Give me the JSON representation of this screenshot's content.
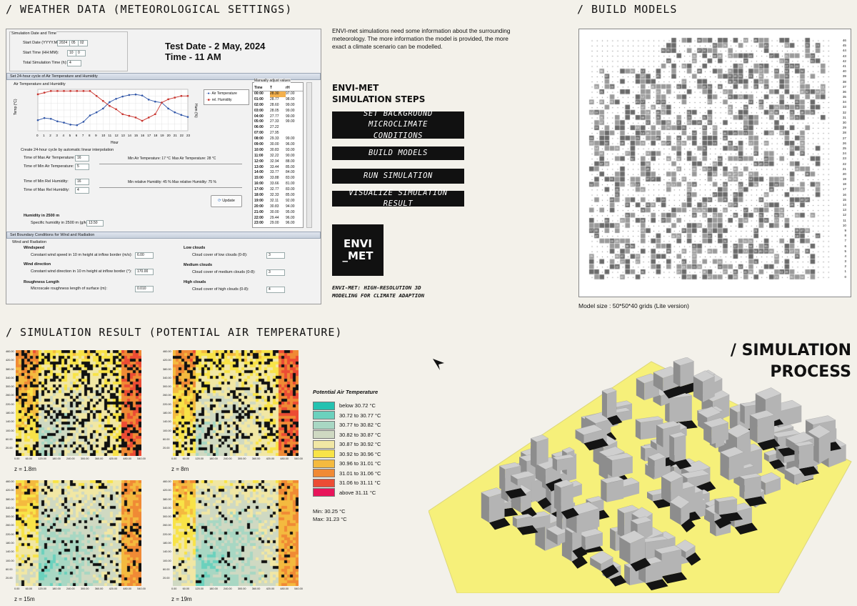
{
  "sections": {
    "weather_title": "/ WEATHER DATA (METEOROLOGICAL SETTINGS)",
    "build_title": "/ BUILD MODELS",
    "result_title": "/ SIMULATION RESULT (POTENTIAL AIR TEMPERATURE)",
    "process_title_1": "/ SIMULATION",
    "process_title_2": "PROCESS"
  },
  "settings": {
    "start_group": "Simulation Date and Time",
    "start_date_label": "Start Date (YYYY.MM.DD):",
    "start_date": [
      "2024",
      "05",
      "02"
    ],
    "start_time_label": "Start Time (HH:MM):",
    "start_time": [
      "10",
      "0"
    ],
    "total_time_label": "Total Simulation Time (h):",
    "total_time": "4",
    "test_date": "Test Date - 2 May, 2024",
    "test_time": "Time - 11 AM",
    "section_air": "Set 24-hour cycle of Air Temperature and Humidity",
    "air_group": "Air Temperature and Humidity",
    "legend_air": "Air Temperature",
    "legend_hum": "rel. Humidity",
    "ylabel_left": "Temp (°C)",
    "ylabel_right": "Hum (%)",
    "xlabel": "Hour",
    "create_cycle": "Create 24-hour cycle by automatic linear interpolation",
    "max_air_label": "Time of Max Air Temperature:",
    "max_air": "16",
    "min_air_label": "Time of Min Air Temperature:",
    "min_air": "5",
    "min_air_temp_text": "Min Air Temperature: 17 °C",
    "max_air_temp_text": "Max Air Temperature: 28 °C",
    "min_hum_label": "Time of Min Rel Humidity:",
    "min_hum": "16",
    "max_hum_label": "Time of Max Rel Humidity:",
    "max_hum": "4",
    "min_rel_hum_text": "Min relative Humidity: 45 %",
    "max_rel_hum_text": "Max relative Humidity: 75 %",
    "update": "Update",
    "humidity_2500_title": "Humidity in 2500 m",
    "spec_hum_label": "Specific humidity in 2500 m (g/kg):",
    "spec_hum": "13.50",
    "manual_title": "Manually adjust values",
    "col_time": "Time",
    "col_t": "T",
    "col_rh": "rH",
    "rows": [
      [
        "00:00",
        "28.30",
        "97.00"
      ],
      [
        "01:00",
        "28.77",
        "98.00"
      ],
      [
        "02:00",
        "28.60",
        "99.00"
      ],
      [
        "03:00",
        "28.05",
        "99.00"
      ],
      [
        "04:00",
        "27.77",
        "99.00"
      ],
      [
        "05:00",
        "27.33",
        "99.00"
      ],
      [
        "06:00",
        "27.22",
        ""
      ],
      [
        "07:00",
        "27.95",
        ""
      ],
      [
        "08:00",
        "29.33",
        "99.00"
      ],
      [
        "09:00",
        "30.00",
        "96.00"
      ],
      [
        "10:00",
        "30.83",
        "93.00"
      ],
      [
        "11:00",
        "32.22",
        "90.00"
      ],
      [
        "12:00",
        "32.94",
        "88.00"
      ],
      [
        "13:00",
        "33.44",
        "85.00"
      ],
      [
        "14:00",
        "33.77",
        "84.00"
      ],
      [
        "15:00",
        "33.88",
        "83.00"
      ],
      [
        "16:00",
        "33.66",
        "81.00"
      ],
      [
        "17:00",
        "32.77",
        "83.00"
      ],
      [
        "18:00",
        "32.33",
        "85.00"
      ],
      [
        "19:00",
        "32.11",
        "92.00"
      ],
      [
        "20:00",
        "30.83",
        "94.00"
      ],
      [
        "21:00",
        "30.00",
        "95.00"
      ],
      [
        "22:00",
        "29.44",
        "96.00"
      ],
      [
        "23:00",
        "29.00",
        "96.00"
      ]
    ],
    "section_wind": "Set Boundary Conditions for Wind and Radiation",
    "wind_group": "Wind and Radiation",
    "windspeed_title": "Windspeed",
    "windspeed_label": "Constant wind speed in 10 m height at inflow border (m/s):",
    "windspeed": "6.00",
    "winddir_title": "Wind direction",
    "winddir_label": "Constant wind direction in 10 m height at inflow border (°):",
    "winddir": "170.00",
    "rough_title": "Roughness Length",
    "rough_label": "Microscale roughness length of surface (m):",
    "rough": "0.010",
    "low_title": "Low clouds",
    "low_label": "Cloud cover of low clouds (0-8):",
    "low": "3",
    "med_title": "Medium clouds",
    "med_label": "Cloud cover of medium clouds (0-8):",
    "med": "3",
    "high_title": "High clouds",
    "high_label": "Cloud cover of high clouds (0-8):",
    "high": "4"
  },
  "intro": "ENVI-met simulations need some information about the surrounding meteorology. The more information the model is provided, the more exact a climate scenario can be modelled.",
  "steps_title_1": "ENVI-MET",
  "steps_title_2": "SIMULATION STEPS",
  "steps": [
    [
      "SET BACKGROUND MICROCLIMATE",
      "CONDITIONS"
    ],
    [
      "BUILD MODELS"
    ],
    [
      "RUN SIMULATION"
    ],
    [
      "VISUALIZE SIMULATION RESULT"
    ]
  ],
  "logo": {
    "line1": "ENVI",
    "line2": "_MET"
  },
  "tagline_1": "ENVI-MET: HIGH-RESOLUTION 3D",
  "tagline_2": "MODELING FOR CLIMATE ADAPTION",
  "model_size": "Model size : 50*50*40 grids (Lite version)",
  "grid_ylabels": [
    "46",
    "45",
    "44",
    "43",
    "42",
    "41",
    "40",
    "39",
    "38",
    "37",
    "36",
    "35",
    "34",
    "33",
    "32",
    "31",
    "30",
    "29",
    "28",
    "27",
    "26",
    "25",
    "24",
    "23",
    "22",
    "21",
    "20",
    "19",
    "18",
    "17",
    "16",
    "15",
    "14",
    "13",
    "12",
    "11",
    "10",
    "9",
    "8",
    "7",
    "6",
    "5",
    "4",
    "3",
    "2",
    "1",
    "0"
  ],
  "maps": [
    {
      "label": "z = 1.8m"
    },
    {
      "label": "z = 8m"
    },
    {
      "label": "z = 15m"
    },
    {
      "label": "z = 19m"
    }
  ],
  "map_xticks": [
    "0.00",
    "60.00",
    "120.00",
    "180.00",
    "240.00",
    "300.00",
    "360.00",
    "420.00",
    "480.00",
    "540.00"
  ],
  "map_yticks": [
    "460.00",
    "420.00",
    "380.00",
    "340.00",
    "300.00",
    "260.00",
    "220.00",
    "180.00",
    "140.00",
    "100.00",
    "60.00",
    "20.00"
  ],
  "legend": {
    "title": "Potential Air Temperature",
    "items": [
      {
        "label": "below 30.72 °C",
        "color": "#24c2b0"
      },
      {
        "label": "30.72 to 30.77 °C",
        "color": "#6bd1bd"
      },
      {
        "label": "30.77 to 30.82 °C",
        "color": "#a8d7c3"
      },
      {
        "label": "30.82 to 30.87 °C",
        "color": "#cfd9c2"
      },
      {
        "label": "30.87 to 30.92 °C",
        "color": "#f1e7a4"
      },
      {
        "label": "30.92 to 30.96 °C",
        "color": "#f8e347"
      },
      {
        "label": "30.96 to 31.01 °C",
        "color": "#f4ba3f"
      },
      {
        "label": "31.01 to 31.06 °C",
        "color": "#f08a35"
      },
      {
        "label": "31.06 to 31.11 °C",
        "color": "#ec4c34"
      },
      {
        "label": "above 31.11 °C",
        "color": "#e8145a"
      }
    ],
    "min": "Min: 30.25 °C",
    "max": "Max: 31.23 °C"
  }
}
